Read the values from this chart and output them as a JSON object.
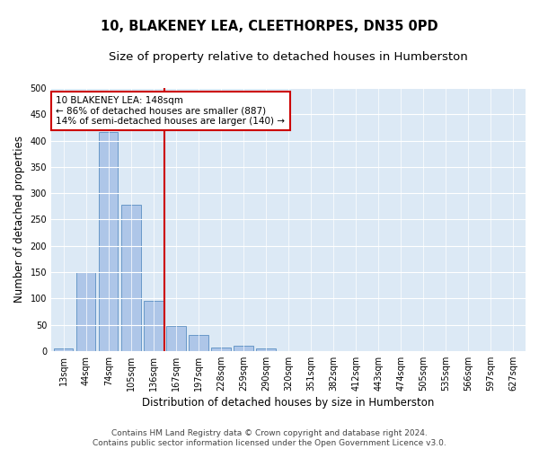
{
  "title": "10, BLAKENEY LEA, CLEETHORPES, DN35 0PD",
  "subtitle": "Size of property relative to detached houses in Humberston",
  "xlabel": "Distribution of detached houses by size in Humberston",
  "ylabel": "Number of detached properties",
  "categories": [
    "13sqm",
    "44sqm",
    "74sqm",
    "105sqm",
    "136sqm",
    "167sqm",
    "197sqm",
    "228sqm",
    "259sqm",
    "290sqm",
    "320sqm",
    "351sqm",
    "382sqm",
    "412sqm",
    "443sqm",
    "474sqm",
    "505sqm",
    "535sqm",
    "566sqm",
    "597sqm",
    "627sqm"
  ],
  "values": [
    5,
    150,
    417,
    278,
    96,
    48,
    30,
    6,
    10,
    4,
    0,
    0,
    0,
    0,
    0,
    0,
    0,
    0,
    0,
    0,
    0
  ],
  "bar_color": "#aec6e8",
  "bar_edge_color": "#5a8fc2",
  "vline_x": 4.5,
  "vline_color": "#cc0000",
  "annotation_text": "10 BLAKENEY LEA: 148sqm\n← 86% of detached houses are smaller (887)\n14% of semi-detached houses are larger (140) →",
  "annotation_box_color": "#ffffff",
  "annotation_box_edge_color": "#cc0000",
  "ylim": [
    0,
    500
  ],
  "yticks": [
    0,
    50,
    100,
    150,
    200,
    250,
    300,
    350,
    400,
    450,
    500
  ],
  "background_color": "#dce9f5",
  "footer_line1": "Contains HM Land Registry data © Crown copyright and database right 2024.",
  "footer_line2": "Contains public sector information licensed under the Open Government Licence v3.0.",
  "title_fontsize": 10.5,
  "subtitle_fontsize": 9.5,
  "xlabel_fontsize": 8.5,
  "ylabel_fontsize": 8.5,
  "tick_fontsize": 7,
  "annotation_fontsize": 7.5,
  "footer_fontsize": 6.5
}
